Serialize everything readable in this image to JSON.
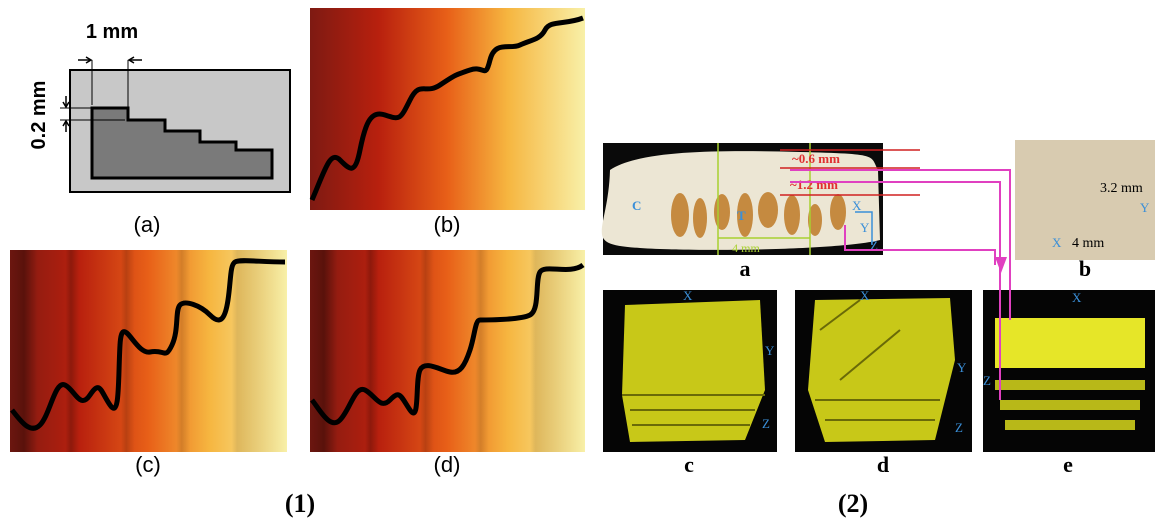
{
  "part1": {
    "label": "(1)",
    "panels": [
      {
        "caption": "(a)",
        "width_label": "1 mm",
        "height_label": "0.2 mm"
      },
      {
        "caption": "(b)"
      },
      {
        "caption": "(c)"
      },
      {
        "caption": "(d)"
      }
    ]
  },
  "part2": {
    "label": "(2)",
    "panels": [
      {
        "caption": "a",
        "depth_labels": [
          "~0.6 mm",
          "~1.2 mm"
        ],
        "region_labels": [
          "C",
          "T"
        ],
        "width_label": "4 mm",
        "axes": [
          "X",
          "Y",
          "Z"
        ]
      },
      {
        "caption": "b",
        "height_label": "3.2 mm",
        "width_label": "4 mm",
        "axes": [
          "X",
          "Y"
        ]
      },
      {
        "caption": "c",
        "axes": [
          "X",
          "Y",
          "Z"
        ]
      },
      {
        "caption": "d",
        "axes": [
          "X",
          "Y",
          "Z"
        ]
      },
      {
        "caption": "e",
        "axes": [
          "X",
          "Z"
        ]
      }
    ]
  }
}
